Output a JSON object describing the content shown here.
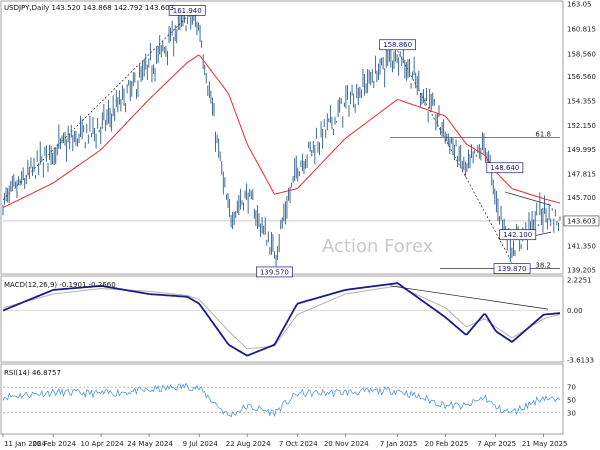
{
  "header": {
    "price": "USDJPY,Daily  143.520 143.868 142.792 143.603",
    "macd": "MACD(12,26,9) -0.1901 -0.2660",
    "rsi": "RSI(14) 46.8757"
  },
  "watermark": "Action Forex",
  "colors": {
    "price_bars": "#2b5c8a",
    "sma": "#e03030",
    "macd_line": "#1a1a8c",
    "signal_line": "#b0b0b0",
    "rsi_line": "#3a8fd6",
    "annotation_box": "#1a1a6e",
    "level_line": "#333333"
  },
  "chart_data": [
    {
      "type": "line",
      "name": "price",
      "title": "USDJPY,Daily",
      "ylim": [
        139.205,
        163.05
      ],
      "y_ticks": [
        "163.05",
        "160.815",
        "158.560",
        "156.560",
        "154.355",
        "152.150",
        "149.995",
        "147.815",
        "145.700",
        "143.603",
        "141.350",
        "139.205"
      ],
      "x_ticks": [
        "11 Jan 2024",
        "26 Feb 2024",
        "10 Apr 2024",
        "24 May 2024",
        "9 Jul 2024",
        "22 Aug 2024",
        "7 Oct 2024",
        "20 Nov 2024",
        "7 Jan 2025",
        "20 Feb 2025",
        "7 Apr 2025",
        "21 May 2025"
      ],
      "x": [
        "11 Jan 2024",
        "26 Feb 2024",
        "10 Apr 2024",
        "24 May 2024",
        "28 Jun 2024",
        "9 Jul 2024",
        "5 Aug 2024",
        "22 Aug 2024",
        "16 Sep 2024",
        "7 Oct 2024",
        "20 Nov 2024",
        "7 Jan 2025",
        "20 Feb 2025",
        "11 Mar 2025",
        "28 Mar 2025",
        "7 Apr 2025",
        "22 Apr 2025",
        "21 May 2025",
        "5 Jun 2025"
      ],
      "close": [
        145.2,
        150.0,
        152.0,
        157.3,
        161.9,
        161.0,
        144.0,
        146.0,
        140.6,
        148.5,
        154.0,
        158.86,
        151.5,
        148.0,
        150.5,
        145.5,
        141.2,
        144.5,
        143.603
      ],
      "sma": [
        144.8,
        147.0,
        150.0,
        154.5,
        157.8,
        158.5,
        155.0,
        150.5,
        146.0,
        146.5,
        151.0,
        154.5,
        153.0,
        150.5,
        149.5,
        148.0,
        146.5,
        145.6,
        145.2
      ],
      "annotations": [
        {
          "label": "161.940",
          "x": "28 Jun 2024",
          "y": 161.94
        },
        {
          "label": "139.570",
          "x": "16 Sep 2024",
          "y": 139.57
        },
        {
          "label": "158.860",
          "x": "7 Jan 2025",
          "y": 158.86
        },
        {
          "label": "148.640",
          "x": "28 Mar 2025",
          "y": 148.64
        },
        {
          "label": "142.100",
          "x": "7 Apr 2025",
          "y": 142.1
        },
        {
          "label": "139.870",
          "x": "22 Apr 2025",
          "y": 139.87
        }
      ],
      "levels": [
        {
          "label": "61.8",
          "y": 151.1
        },
        {
          "label": "38.2",
          "y": 139.35
        }
      ],
      "current": "143.603"
    },
    {
      "type": "line",
      "name": "macd",
      "title": "MACD(12,26,9)",
      "ylim": [
        -3.6133,
        2.2251
      ],
      "y_ticks": [
        "2.2251",
        "0.00",
        "-3.6133"
      ],
      "x": [
        "11 Jan 2024",
        "26 Feb 2024",
        "10 Apr 2024",
        "24 May 2024",
        "28 Jun 2024",
        "9 Jul 2024",
        "5 Aug 2024",
        "22 Aug 2024",
        "16 Sep 2024",
        "7 Oct 2024",
        "20 Nov 2024",
        "7 Jan 2025",
        "20 Feb 2025",
        "11 Mar 2025",
        "28 Mar 2025",
        "7 Apr 2025",
        "22 Apr 2025",
        "21 May 2025",
        "5 Jun 2025"
      ],
      "macd": [
        0.0,
        1.5,
        1.8,
        1.2,
        1.0,
        0.5,
        -2.5,
        -3.3,
        -2.5,
        0.5,
        1.5,
        2.0,
        -0.5,
        -1.8,
        -0.2,
        -1.5,
        -2.3,
        -0.3,
        -0.19
      ],
      "signal": [
        0.2,
        1.2,
        1.6,
        1.4,
        1.1,
        0.8,
        -1.5,
        -2.8,
        -2.6,
        -0.3,
        1.2,
        1.8,
        0.2,
        -1.2,
        -0.6,
        -1.2,
        -2.0,
        -0.6,
        -0.27
      ]
    },
    {
      "type": "line",
      "name": "rsi",
      "title": "RSI(14)",
      "ylim": [
        0,
        100
      ],
      "y_ticks": [
        "70",
        "50",
        "30"
      ],
      "x": [
        "11 Jan 2024",
        "26 Feb 2024",
        "10 Apr 2024",
        "24 May 2024",
        "28 Jun 2024",
        "9 Jul 2024",
        "5 Aug 2024",
        "22 Aug 2024",
        "16 Sep 2024",
        "7 Oct 2024",
        "20 Nov 2024",
        "7 Jan 2025",
        "20 Feb 2025",
        "11 Mar 2025",
        "28 Mar 2025",
        "7 Apr 2025",
        "22 Apr 2025",
        "21 May 2025",
        "5 Jun 2025"
      ],
      "values": [
        55,
        62,
        60,
        65,
        72,
        68,
        25,
        40,
        30,
        60,
        62,
        65,
        42,
        40,
        55,
        38,
        30,
        55,
        46.9
      ]
    }
  ]
}
